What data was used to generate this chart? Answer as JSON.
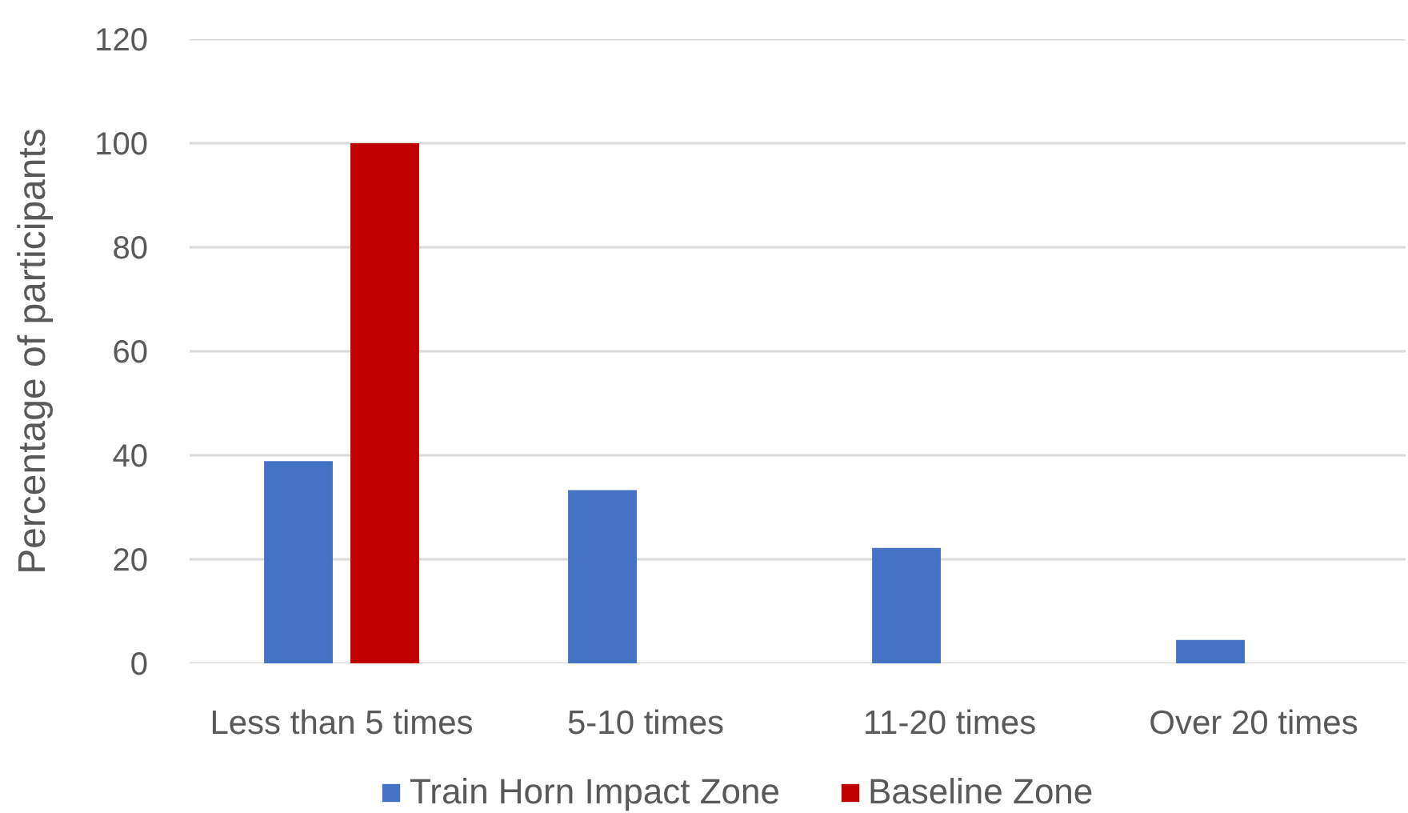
{
  "chart_data": {
    "type": "bar",
    "ylabel": "Percentage of participants",
    "categories": [
      "Less than 5 times",
      "5-10 times",
      "11-20 times",
      "Over 20 times"
    ],
    "series": [
      {
        "name": "Train Horn Impact Zone",
        "color": "#4472c4",
        "values": [
          38.9,
          33.3,
          22.2,
          4.5
        ]
      },
      {
        "name": "Baseline Zone",
        "color": "#c00000",
        "values": [
          100,
          0,
          0,
          0
        ]
      }
    ],
    "ylim": [
      0,
      120
    ],
    "yticks": [
      0,
      20,
      40,
      60,
      80,
      100,
      120
    ],
    "grid": "y",
    "legend": "bottom"
  }
}
